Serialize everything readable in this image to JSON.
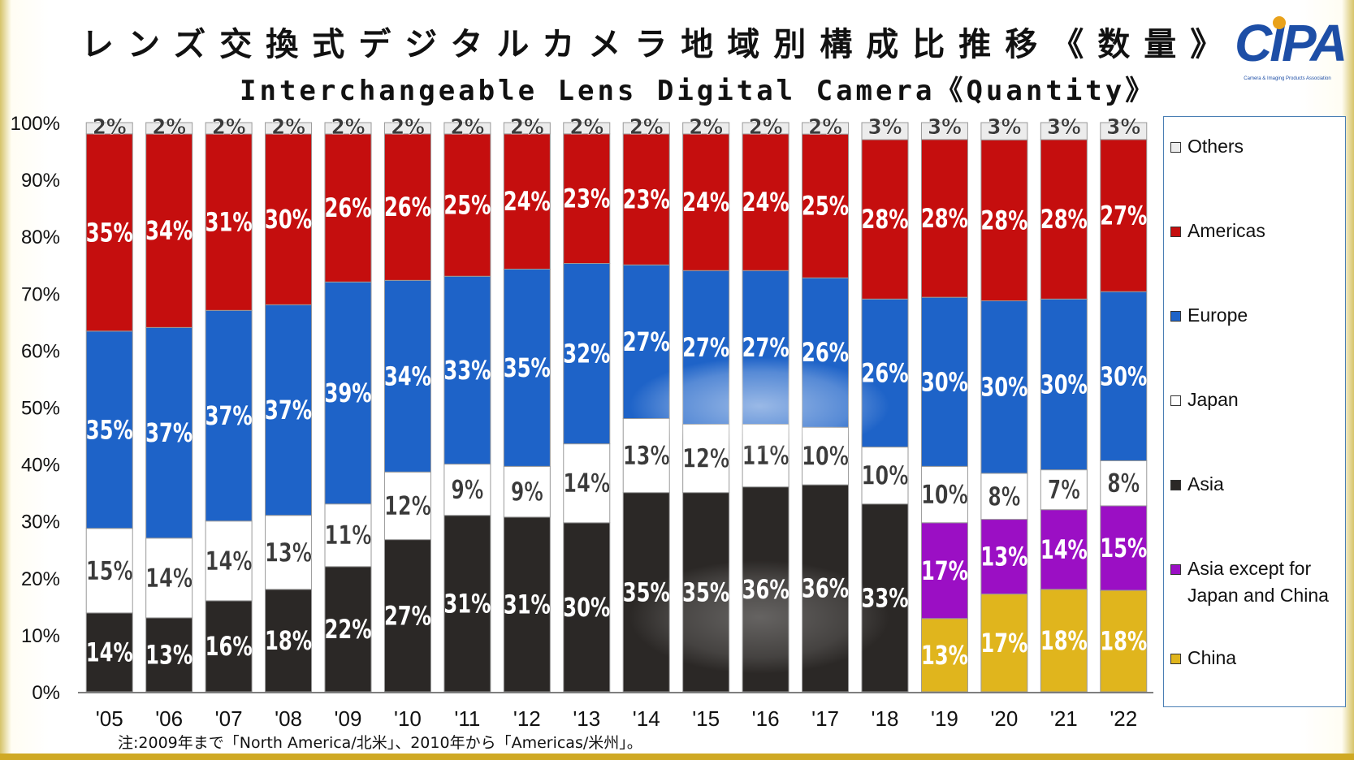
{
  "title_jp": "レンズ交換式デジタルカメラ地域別構成比推移《数量》",
  "title_en": "Interchangeable Lens Digital Camera《Quantity》",
  "logo": {
    "text": "CIPA",
    "subtitle": "Camera & Imaging Products Association"
  },
  "note": "注:2009年まで「North America/北米」、2010年から「Americas/米州」。",
  "colors": {
    "China": "#e0b51d",
    "Asia except for Japan and China": "#9b0fc4",
    "Asia": "#2b2826",
    "Japan": "#ffffff",
    "Europe": "#1e63c8",
    "Americas": "#c50e0e",
    "Others": "#ececec"
  },
  "legend": [
    {
      "name": "Others",
      "label": "Others"
    },
    {
      "name": "Americas",
      "label": "Americas"
    },
    {
      "name": "Europe",
      "label": "Europe"
    },
    {
      "name": "Japan",
      "label": "Japan"
    },
    {
      "name": "Asia",
      "label": "Asia"
    },
    {
      "name": "Asia except for Japan and China",
      "label": "Asia except for\nJapan and China"
    },
    {
      "name": "China",
      "label": "China"
    }
  ],
  "chart_data": {
    "type": "bar",
    "stacked": true,
    "categories": [
      "'05",
      "'06",
      "'07",
      "'08",
      "'09",
      "'10",
      "'11",
      "'12",
      "'13",
      "'14",
      "'15",
      "'16",
      "'17",
      "'18",
      "'19",
      "'20",
      "'21",
      "'22"
    ],
    "yticks": [
      "0%",
      "10%",
      "20%",
      "30%",
      "40%",
      "50%",
      "60%",
      "70%",
      "80%",
      "90%",
      "100%"
    ],
    "ylim": [
      0,
      100
    ],
    "grid": false,
    "legend_position": "right",
    "series": [
      {
        "name": "China",
        "values": [
          null,
          null,
          null,
          null,
          null,
          null,
          null,
          null,
          null,
          null,
          null,
          null,
          null,
          null,
          13,
          17,
          18,
          18
        ],
        "labels": [
          "",
          "",
          "",
          "",
          "",
          "",
          "",
          "",
          "",
          "",
          "",
          "",
          "",
          "",
          "13%",
          "17%",
          "18%",
          "18%"
        ]
      },
      {
        "name": "Asia except for Japan and China",
        "values": [
          null,
          null,
          null,
          null,
          null,
          null,
          null,
          null,
          null,
          null,
          null,
          null,
          null,
          null,
          17,
          13,
          14,
          15
        ],
        "labels": [
          "",
          "",
          "",
          "",
          "",
          "",
          "",
          "",
          "",
          "",
          "",
          "",
          "",
          "",
          "17%",
          "13%",
          "14%",
          "15%"
        ]
      },
      {
        "name": "Asia",
        "values": [
          14,
          13,
          16,
          18,
          22,
          27,
          31,
          31,
          30,
          35,
          35,
          36,
          36,
          33,
          null,
          null,
          null,
          null
        ],
        "labels": [
          "14%",
          "13%",
          "16%",
          "18%",
          "22%",
          "27%",
          "31%",
          "31%",
          "30%",
          "35%",
          "35%",
          "36%",
          "36%",
          "33%",
          "",
          "",
          "",
          ""
        ]
      },
      {
        "name": "Japan",
        "values": [
          15,
          14,
          14,
          13,
          11,
          12,
          9,
          9,
          14,
          13,
          12,
          11,
          10,
          10,
          10,
          8,
          7,
          8
        ],
        "labels": [
          "15%",
          "14%",
          "14%",
          "13%",
          "11%",
          "12%",
          "9%",
          "9%",
          "14%",
          "13%",
          "12%",
          "11%",
          "10%",
          "10%",
          "10%",
          "8%",
          "7%",
          "8%"
        ]
      },
      {
        "name": "Europe",
        "values": [
          35,
          37,
          37,
          37,
          39,
          34,
          33,
          35,
          32,
          27,
          27,
          27,
          26,
          26,
          30,
          30,
          30,
          30
        ],
        "labels": [
          "35%",
          "37%",
          "37%",
          "37%",
          "39%",
          "34%",
          "33%",
          "35%",
          "32%",
          "27%",
          "27%",
          "27%",
          "26%",
          "26%",
          "30%",
          "30%",
          "30%",
          "30%"
        ]
      },
      {
        "name": "Americas",
        "values": [
          35,
          34,
          31,
          30,
          26,
          26,
          25,
          24,
          23,
          23,
          24,
          24,
          25,
          28,
          28,
          28,
          28,
          27
        ],
        "labels": [
          "35%",
          "34%",
          "31%",
          "30%",
          "26%",
          "26%",
          "25%",
          "24%",
          "23%",
          "23%",
          "24%",
          "24%",
          "25%",
          "28%",
          "28%",
          "28%",
          "28%",
          "27%"
        ]
      },
      {
        "name": "Others",
        "values": [
          2,
          2,
          2,
          2,
          2,
          2,
          2,
          2,
          2,
          2,
          2,
          2,
          2,
          3,
          3,
          3,
          3,
          3
        ],
        "labels": [
          "2%",
          "2%",
          "2%",
          "2%",
          "2%",
          "2%",
          "2%",
          "2%",
          "2%",
          "2%",
          "2%",
          "2%",
          "2%",
          "3%",
          "3%",
          "3%",
          "3%",
          "3%"
        ]
      }
    ]
  }
}
